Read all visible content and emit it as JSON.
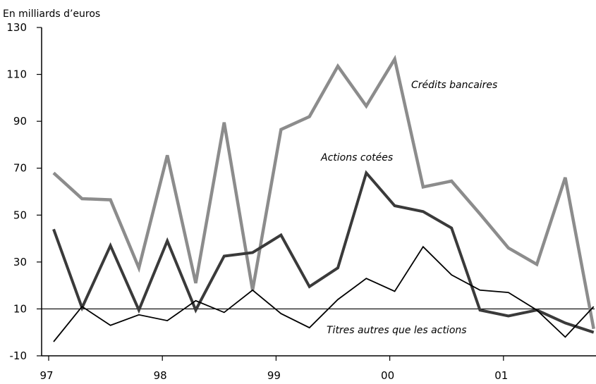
{
  "chart_data": {
    "type": "line",
    "ylabel": "En milliards d’euros",
    "ylim": [
      -10,
      130
    ],
    "y_ticks": [
      "-10",
      "10",
      "30",
      "50",
      "70",
      "90",
      "110",
      "130"
    ],
    "x_tick_labels": [
      "97",
      "98",
      "99",
      "00",
      "01"
    ],
    "x_tick_years": [
      1997,
      1998,
      1999,
      2000,
      2001
    ],
    "grid": false,
    "reference_line_y": 10,
    "series": [
      {
        "name": "Crédits bancaires",
        "color": "#8c8c8c",
        "values": [
          68,
          57,
          56.5,
          27.5,
          75.5,
          21,
          89.5,
          18,
          86.5,
          92,
          113.5,
          96.5,
          116.5,
          62,
          64.5,
          50.5,
          36,
          29,
          66,
          1.5
        ]
      },
      {
        "name": "Actions cotées",
        "color": "#3a3a3a",
        "values": [
          44,
          10.5,
          37,
          9.5,
          39,
          9.5,
          32.5,
          34,
          41.5,
          19.5,
          27.5,
          68,
          54,
          51.5,
          44.5,
          9.5,
          7,
          9.5,
          4,
          0
        ]
      },
      {
        "name": "Titres autres que les actions",
        "color": "#000000",
        "values": [
          -4,
          11,
          3,
          7.5,
          5,
          13.5,
          8.5,
          18,
          8,
          2,
          14,
          23,
          17.5,
          36.5,
          24.5,
          18,
          17,
          9.5,
          -2,
          11
        ]
      }
    ]
  }
}
